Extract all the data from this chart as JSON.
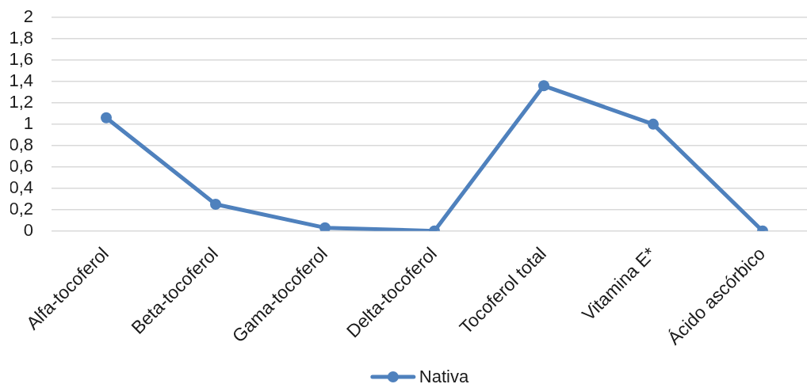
{
  "chart_data": {
    "type": "line",
    "categories": [
      "Alfa-tocoferol",
      "Beta-tocoferol",
      "Gama-tocoferol",
      "Delta-tocoferol",
      "Tocoferol total",
      "Vitamina E*",
      "Ácido ascórbico"
    ],
    "series": [
      {
        "name": "Nativa",
        "color": "#4f81bd",
        "values": [
          1.06,
          0.25,
          0.03,
          0,
          1.36,
          1.0,
          0
        ]
      }
    ],
    "ylim": [
      0,
      2
    ],
    "yticks": [
      0,
      {
        "value": 0.2,
        "label": "0,2"
      },
      {
        "value": 0.4,
        "label": "0,4"
      },
      {
        "value": 0.6,
        "label": "0,6"
      },
      {
        "value": 0.8,
        "label": "0,8"
      },
      1,
      {
        "value": 1.2,
        "label": "1,2"
      },
      {
        "value": 1.4,
        "label": "1,4"
      },
      {
        "value": 1.6,
        "label": "1,6"
      },
      {
        "value": 1.8,
        "label": "1,8"
      },
      2
    ],
    "grid": "y",
    "legend": "bottom",
    "marker": "circle",
    "line_style": "solid"
  }
}
